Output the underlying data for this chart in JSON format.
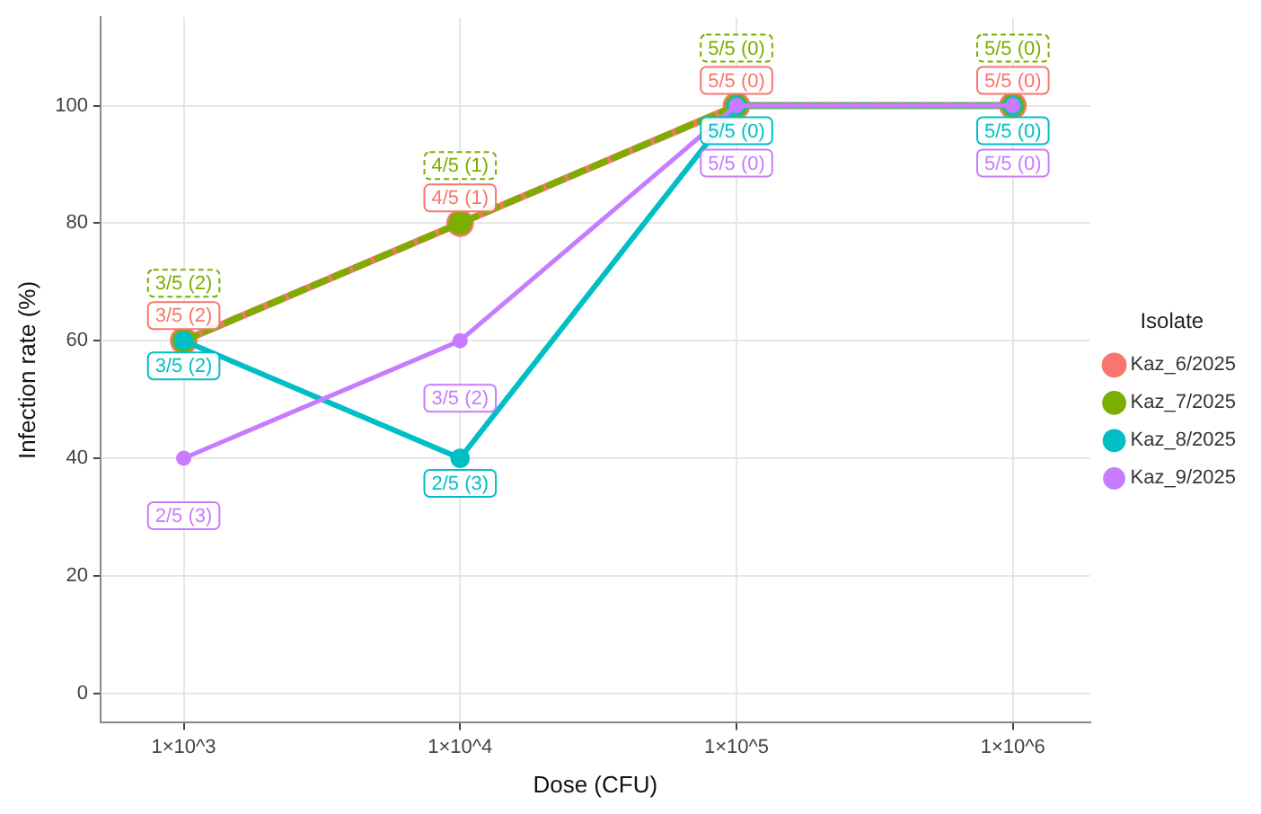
{
  "chart_data": {
    "type": "line",
    "xlabel": "Dose (CFU)",
    "ylabel": "Infection rate (%)",
    "legend_title": "Isolate",
    "legend": "right",
    "grid": true,
    "marker": "circle",
    "log": "x",
    "x": [
      1000,
      10000,
      100000,
      1000000
    ],
    "xlim": [
      500,
      1900000
    ],
    "xticks": [
      {
        "value": 1000,
        "label": "1×10^3"
      },
      {
        "value": 10000,
        "label": "1×10^4"
      },
      {
        "value": 100000,
        "label": "1×10^5"
      },
      {
        "value": 1000000,
        "label": "1×10^6"
      }
    ],
    "ylim": [
      -5,
      115
    ],
    "yticks": [
      0,
      20,
      40,
      60,
      80,
      100
    ],
    "series": [
      {
        "name": "Kaz_6/2025",
        "color": "#f8766d",
        "values": [
          60,
          80,
          100,
          100
        ],
        "value_labels": [
          "3/5 (2)",
          "4/5 (1)",
          "5/5 (0)",
          "5/5 (0)"
        ]
      },
      {
        "name": "Kaz_7/2025",
        "color": "#7cae00",
        "line_style": "dashed",
        "values": [
          60,
          80,
          100,
          100
        ],
        "value_labels": [
          "3/5 (2)",
          "4/5 (1)",
          "5/5 (0)",
          "5/5 (0)"
        ]
      },
      {
        "name": "Kaz_8/2025",
        "color": "#00bfc4",
        "values": [
          60,
          40,
          100,
          100
        ],
        "value_labels": [
          "3/5 (2)",
          "2/5 (3)",
          "5/5 (0)",
          "5/5 (0)"
        ]
      },
      {
        "name": "Kaz_9/2025",
        "color": "#c77cff",
        "values": [
          40,
          60,
          100,
          100
        ],
        "value_labels": [
          "2/5 (3)",
          "3/5 (2)",
          "5/5 (0)",
          "5/5 (0)"
        ]
      }
    ]
  }
}
